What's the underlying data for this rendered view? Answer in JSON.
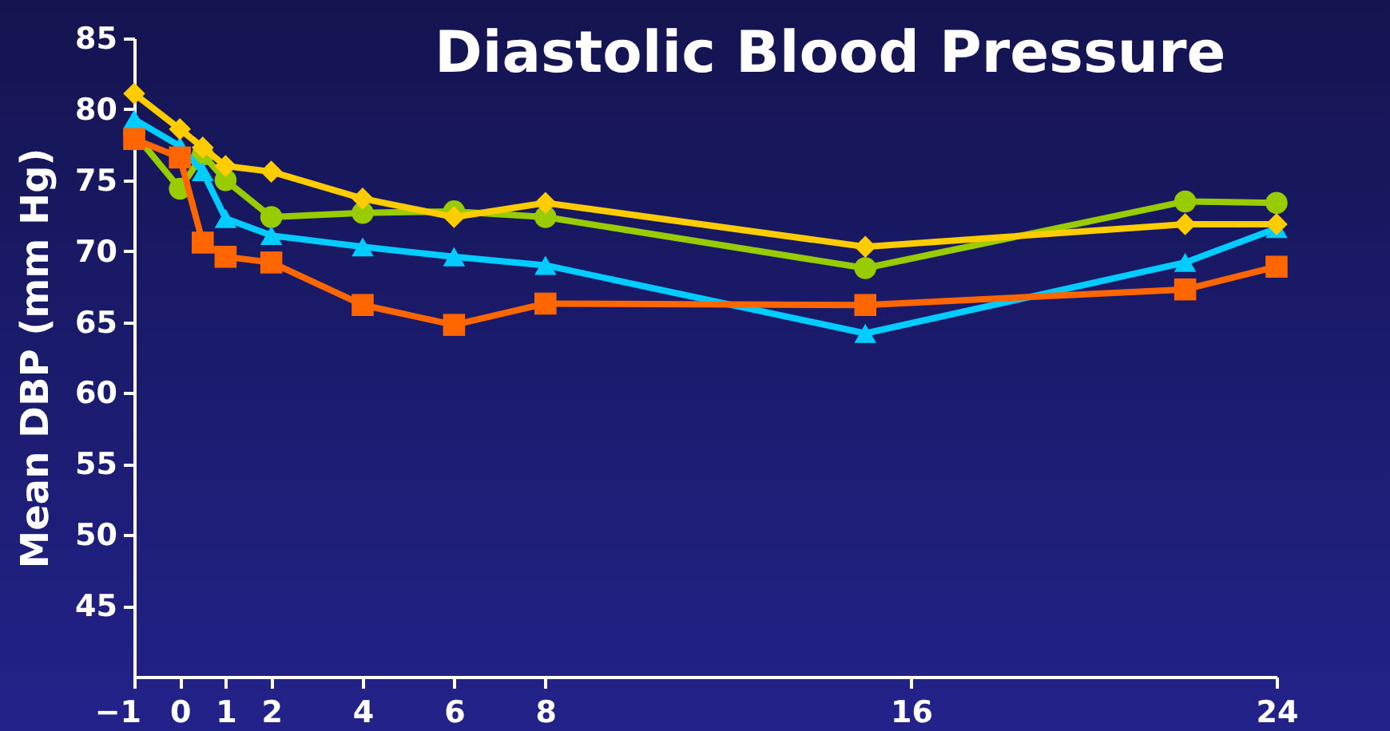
{
  "chart_data": {
    "type": "line",
    "title": "Diastolic Blood Pressure",
    "ylabel": "Mean DBP (mm Hg)",
    "x": [
      -1,
      0,
      0.5,
      1,
      2,
      4,
      6,
      8,
      15,
      22,
      24
    ],
    "xlim": [
      -1,
      24
    ],
    "xticks": [
      -1,
      0,
      1,
      2,
      4,
      6,
      8,
      16,
      24
    ],
    "ylim": [
      40,
      85
    ],
    "yticks": [
      45,
      50,
      55,
      60,
      65,
      70,
      75,
      80,
      85
    ],
    "grid": false,
    "series": [
      {
        "color": "#99cc00",
        "marker": "circle",
        "values": [
          78.3,
          74.4,
          76.8,
          75.0,
          72.4,
          72.7,
          72.8,
          72.4,
          68.8,
          73.5,
          73.4
        ]
      },
      {
        "color": "#00ccff",
        "marker": "triangle",
        "values": [
          79.3,
          77.4,
          75.6,
          72.3,
          71.1,
          70.3,
          69.6,
          69.0,
          64.2,
          69.2,
          71.6
        ]
      },
      {
        "color": "#ff6600",
        "marker": "square",
        "values": [
          77.9,
          76.6,
          70.6,
          69.6,
          69.2,
          66.2,
          64.8,
          66.3,
          66.2,
          67.3,
          68.9
        ]
      },
      {
        "color": "#ffcc00",
        "marker": "diamond",
        "values": [
          81.1,
          78.6,
          77.3,
          76.0,
          75.6,
          73.7,
          72.4,
          73.4,
          70.3,
          71.9,
          71.9
        ]
      }
    ]
  }
}
